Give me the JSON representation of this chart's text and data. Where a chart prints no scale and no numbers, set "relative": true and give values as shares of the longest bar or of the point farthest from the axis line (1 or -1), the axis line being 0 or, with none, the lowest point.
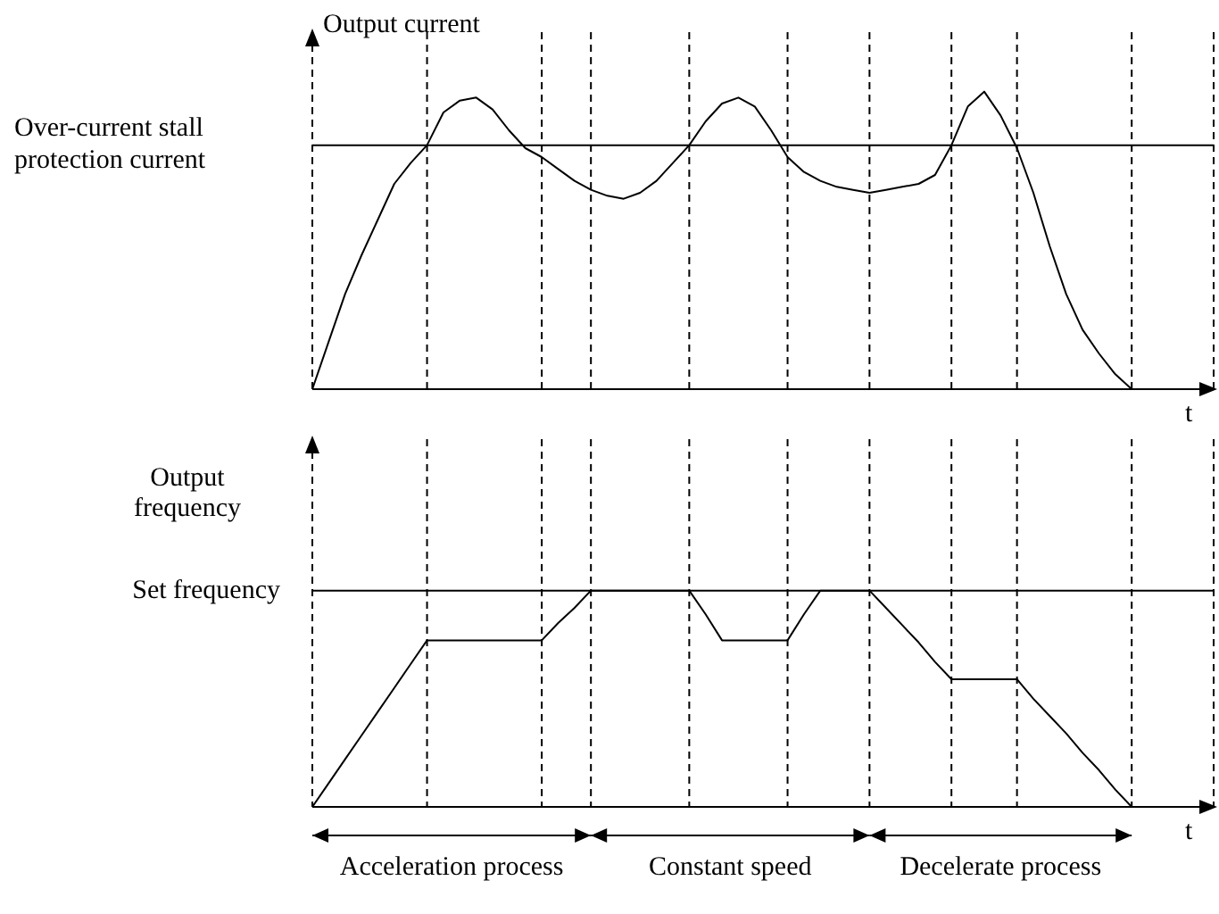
{
  "chart_data": [
    {
      "type": "line",
      "relative": true,
      "ylabel": "Output current",
      "xlabel": "t",
      "grid": "x",
      "legend": false,
      "marker": "none",
      "line_style": "solid",
      "categories": [
        null,
        null,
        null,
        null,
        null,
        null,
        null,
        null,
        null,
        null,
        null,
        null,
        null,
        null,
        null,
        null,
        null,
        null,
        null,
        null,
        null,
        null,
        null,
        null,
        null,
        null,
        null,
        null,
        null,
        null,
        null,
        null,
        null,
        null,
        null,
        null,
        null,
        null,
        null,
        null,
        null,
        null,
        null,
        null,
        null,
        null,
        null,
        null,
        null,
        null,
        null,
        null,
        null,
        null,
        null,
        null
      ],
      "series": [
        {
          "color": "#000000",
          "values": [
            0,
            0.16,
            0.32,
            0.45,
            0.57,
            0.69,
            0.76,
            0.82,
            0.93,
            0.97,
            0.98,
            0.94,
            0.87,
            0.81,
            0.78,
            0.74,
            0.7,
            0.67,
            0.65,
            0.64,
            0.66,
            0.7,
            0.76,
            0.82,
            0.9,
            0.96,
            0.98,
            0.95,
            0.87,
            0.78,
            0.73,
            0.7,
            0.68,
            0.67,
            0.66,
            0.67,
            0.68,
            0.69,
            0.72,
            0.82,
            0.95,
            1,
            0.92,
            0.81,
            0.66,
            0.48,
            0.32,
            0.2,
            0.12,
            0.05,
            0,
            null,
            null,
            null,
            null,
            null
          ]
        }
      ],
      "ref_lines": [
        {
          "axis": "y",
          "value": 0.82,
          "label": "Over-current stall protection current",
          "color": "#000000",
          "line_style": "solid"
        }
      ]
    },
    {
      "type": "line",
      "relative": true,
      "ylabel": "Output frequency",
      "xlabel": "t",
      "grid": "x",
      "legend": false,
      "marker": "none",
      "line_style": "solid",
      "categories": [
        null,
        null,
        null,
        null,
        null,
        null,
        null,
        null,
        null,
        null,
        null,
        null,
        null,
        null,
        null,
        null,
        null,
        null,
        null,
        null,
        null,
        null,
        null,
        null,
        null,
        null,
        null,
        null,
        null,
        null,
        null,
        null,
        null,
        null,
        null,
        null,
        null,
        null,
        null,
        null,
        null,
        null,
        null,
        null,
        null,
        null,
        null,
        null,
        null,
        null,
        null,
        null,
        null,
        null,
        null,
        null
      ],
      "series": [
        {
          "color": "#000000",
          "values": [
            0,
            0.11,
            0.22,
            0.33,
            0.44,
            0.55,
            0.66,
            0.77,
            0.77,
            0.77,
            0.77,
            0.77,
            0.77,
            0.77,
            0.77,
            0.85,
            0.92,
            1,
            1,
            1,
            1,
            1,
            1,
            1,
            0.89,
            0.77,
            0.77,
            0.77,
            0.77,
            0.77,
            0.89,
            1,
            1,
            1,
            1,
            0.92,
            0.84,
            0.76,
            0.67,
            0.59,
            0.59,
            0.59,
            0.59,
            0.59,
            0.5,
            0.42,
            0.34,
            0.25,
            0.17,
            0.08,
            0,
            null,
            null,
            null,
            null,
            null
          ]
        }
      ],
      "ref_lines": [
        {
          "axis": "y",
          "value": 1,
          "label": "Set frequency",
          "color": "#000000",
          "line_style": "solid"
        }
      ],
      "annotations": [
        "Acceleration process",
        "Constant speed",
        "Decelerate process"
      ]
    }
  ]
}
